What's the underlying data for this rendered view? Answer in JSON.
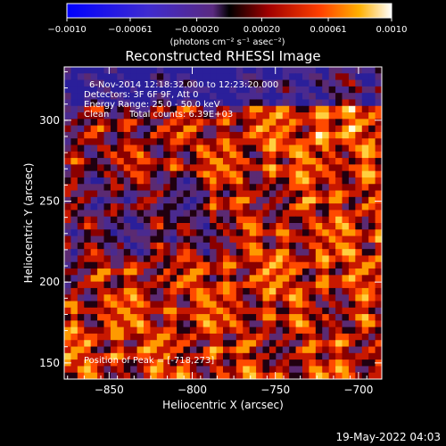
{
  "chart_data": {
    "type": "heatmap",
    "title": "Reconstructed RHESSI Image",
    "xlabel": "Heliocentric X (arcsec)",
    "ylabel": "Heliocentric Y (arcsec)",
    "xlim": [
      -877,
      -686
    ],
    "ylim": [
      140,
      333
    ],
    "x_ticks": [
      -850,
      -800,
      -750,
      -700
    ],
    "x_tick_labels": [
      "−850",
      "−800",
      "−750",
      "−700"
    ],
    "y_ticks": [
      150,
      200,
      250,
      300
    ],
    "y_tick_labels": [
      "150",
      "200",
      "250",
      "300"
    ],
    "colorbar": {
      "range": [
        -0.001,
        0.001
      ],
      "tick_values": [
        -0.001,
        -0.00061,
        -0.0002,
        0.0002,
        0.00061,
        0.001
      ],
      "tick_labels": [
        "−0.0010",
        "−0.00061",
        "−0.00020",
        "0.00020",
        "0.00061",
        "0.0010"
      ],
      "units_label": "(photons cm⁻² s⁻¹ asec⁻²)"
    },
    "annotations": {
      "time_range": "6-Nov-2014 12:18:32.000 to 12:23:20.000",
      "detectors": "Detectors: 3F 6F 9F, Att 0",
      "energy_range": "Energy Range: 25.0 - 50.0 keV",
      "method": "Clean",
      "total_counts": "Total counts: 6.39E+03",
      "peak_position": "Position of Peak = [-718,273]"
    },
    "peak_position": [
      -718,
      273
    ],
    "timestamp": "19-May-2022 04:03"
  }
}
